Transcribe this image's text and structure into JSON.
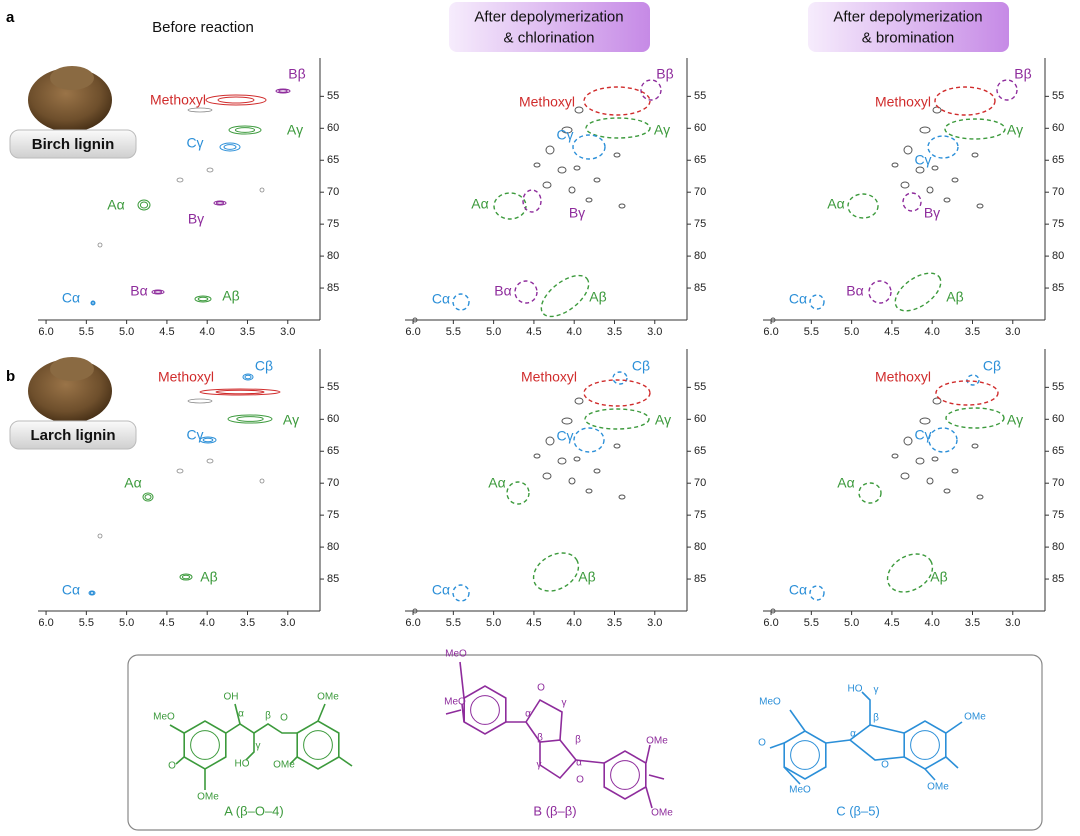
{
  "panel_labels": [
    "a",
    "b"
  ],
  "column_titles": [
    {
      "lines": [
        "Before reaction"
      ]
    },
    {
      "lines": [
        "After depolymerization",
        "& chlorination"
      ]
    },
    {
      "lines": [
        "After depolymerization",
        "& bromination"
      ]
    }
  ],
  "samples": [
    "Birch lignin",
    "Larch lignin"
  ],
  "spectra_axes": {
    "xlim": [
      6.1,
      2.6
    ],
    "ylim": [
      49,
      90
    ],
    "y_reversed": true,
    "xticks": [
      {
        "value": 6,
        "label": "6.0"
      },
      5.5,
      {
        "value": 5,
        "label": "5.0"
      },
      4.5,
      {
        "value": 4,
        "label": "4.0"
      },
      3.5,
      {
        "value": 3,
        "label": "3.0"
      }
    ],
    "yticks": [
      55,
      60,
      65,
      70,
      75,
      80,
      85
    ]
  },
  "colors": {
    "A": "#3c9a3c",
    "B": "#8e2c9c",
    "C": "#2b8fd8",
    "Methoxyl": "#d02c2c"
  },
  "spectra": [
    {
      "annotations": [
        "Bβ",
        "Methoxyl",
        "Aγ",
        "Cγ",
        "Aα",
        "Bγ",
        "Cα",
        "Bα",
        "Aβ"
      ]
    },
    {
      "annotations": [
        "Bβ",
        "Methoxyl",
        "Aγ",
        "Cγ",
        "Aα",
        "Bγ",
        "Cα",
        "Bα",
        "Aβ"
      ]
    },
    {
      "annotations": [
        "Bβ",
        "Methoxyl",
        "Aγ",
        "Cγ",
        "Aα",
        "Bγ",
        "Cα",
        "Bα",
        "Aβ"
      ]
    },
    {
      "annotations": [
        "Cβ",
        "Methoxyl",
        "Aγ",
        "Cγ",
        "Aα",
        "Aβ",
        "Cα"
      ]
    },
    {
      "annotations": [
        "Cβ",
        "Methoxyl",
        "Aγ",
        "Cγ",
        "Aα",
        "Aβ",
        "Cα"
      ]
    },
    {
      "annotations": [
        "Cβ",
        "Methoxyl",
        "Aγ",
        "Cγ",
        "Aα",
        "Aβ",
        "Cα"
      ]
    }
  ],
  "structures": [
    {
      "label": "A (β–O–4)",
      "atoms": [
        "OH",
        "α",
        "β",
        "O",
        "OMe",
        "MeO",
        "O",
        "OMe",
        "γ",
        "HO",
        "OMe"
      ]
    },
    {
      "label": "B (β–β)",
      "atoms": [
        "MeO",
        "O",
        "γ",
        "α",
        "β",
        "β",
        "α",
        "γ",
        "O",
        "OMe",
        "OMe",
        "MeO"
      ]
    },
    {
      "label": "C (β–5)",
      "atoms": [
        "HO",
        "γ",
        "MeO",
        "β",
        "α",
        "O",
        "O",
        "OMe",
        "OMe",
        "MeO"
      ]
    }
  ]
}
